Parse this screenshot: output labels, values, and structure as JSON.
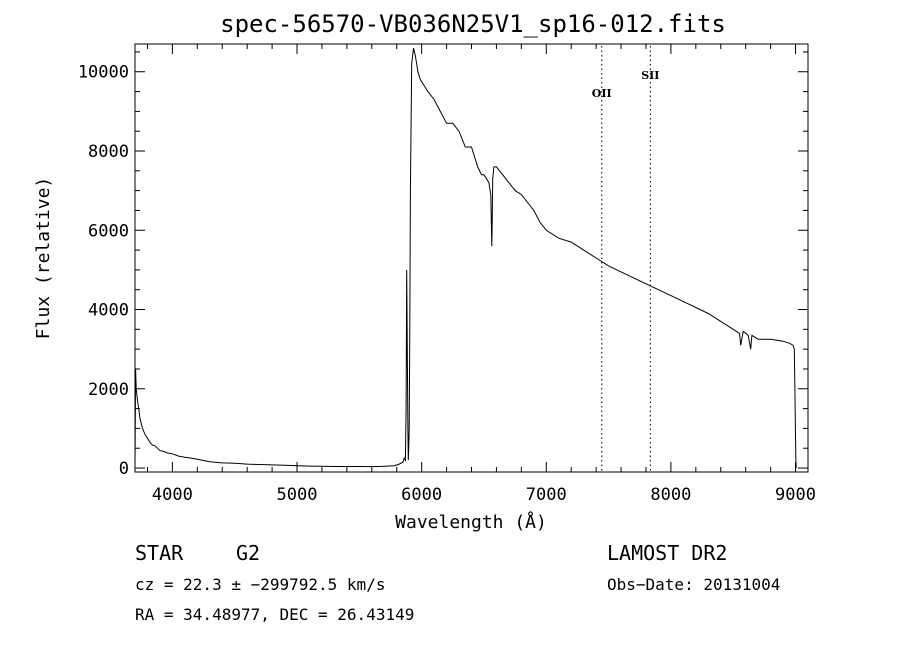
{
  "chart_data": {
    "type": "line",
    "title": "spec-56570-VB036N25V1_sp16-012.fits",
    "xlabel": "Wavelength (Å)",
    "ylabel": "Flux (relative)",
    "xlim": [
      3700,
      9100
    ],
    "ylim": [
      -100,
      10700
    ],
    "xticks": [
      4000,
      5000,
      6000,
      7000,
      8000,
      9000
    ],
    "yticks": [
      0,
      2000,
      4000,
      6000,
      8000,
      10000
    ],
    "series": [
      {
        "x": [
          3700,
          3705,
          3710,
          3720,
          3730,
          3740,
          3760,
          3780,
          3800,
          3820,
          3840,
          3860,
          3880,
          3900,
          3930,
          3960,
          4000,
          4050,
          4100,
          4150,
          4200,
          4300,
          4400,
          4500,
          4600,
          4700,
          4800,
          4900,
          5000,
          5100,
          5200,
          5300,
          5400,
          5500,
          5600,
          5700,
          5780,
          5820,
          5850,
          5860,
          5870,
          5875,
          5880,
          5885,
          5890,
          5893,
          5896,
          5900,
          5905,
          5910,
          5920,
          5935,
          5950,
          5970,
          5990,
          6010,
          6050,
          6100,
          6150,
          6200,
          6250,
          6300,
          6350,
          6400,
          6450,
          6480,
          6500,
          6520,
          6540,
          6555,
          6560,
          6563,
          6566,
          6570,
          6580,
          6600,
          6650,
          6700,
          6750,
          6800,
          6850,
          6900,
          6950,
          7000,
          7100,
          7200,
          7300,
          7400,
          7500,
          7600,
          7700,
          7800,
          7900,
          8000,
          8100,
          8200,
          8300,
          8400,
          8500,
          8550,
          8560,
          8580,
          8620,
          8640,
          8650,
          8700,
          8800,
          8900,
          8950,
          8980,
          8990,
          8995,
          9000,
          9003,
          9005
        ],
        "y": [
          0,
          2500,
          2000,
          1700,
          1500,
          1250,
          1000,
          850,
          750,
          650,
          580,
          560,
          500,
          440,
          420,
          380,
          360,
          300,
          270,
          250,
          220,
          160,
          130,
          120,
          100,
          90,
          80,
          70,
          60,
          50,
          45,
          40,
          40,
          40,
          35,
          45,
          60,
          100,
          150,
          250,
          200,
          1500,
          5000,
          3000,
          1000,
          200,
          500,
          1000,
          3500,
          7000,
          10200,
          10600,
          10400,
          10000,
          9800,
          9700,
          9500,
          9300,
          9000,
          8700,
          8700,
          8500,
          8100,
          8100,
          7600,
          7400,
          7400,
          7300,
          7200,
          6900,
          6100,
          5600,
          6200,
          7300,
          7600,
          7600,
          7400,
          7200,
          7000,
          6900,
          6700,
          6500,
          6200,
          6000,
          5800,
          5700,
          5500,
          5300,
          5100,
          4950,
          4800,
          4650,
          4500,
          4350,
          4200,
          4050,
          3900,
          3700,
          3500,
          3400,
          3100,
          3450,
          3350,
          3000,
          3350,
          3250,
          3250,
          3200,
          3150,
          3100,
          3000,
          2000,
          800,
          200,
          0
        ]
      }
    ],
    "lines": [
      {
        "name": "OII",
        "x": 7445
      },
      {
        "name": "SII",
        "x": 7835
      }
    ]
  },
  "info": {
    "object_class": "STAR",
    "subclass": "G2",
    "survey": "LAMOST DR2",
    "cz": "cz = 22.3 ± −299792.5 km/s",
    "obs_date": "Obs−Date: 20131004",
    "radec": "RA =  34.48977, DEC =  26.43149"
  }
}
